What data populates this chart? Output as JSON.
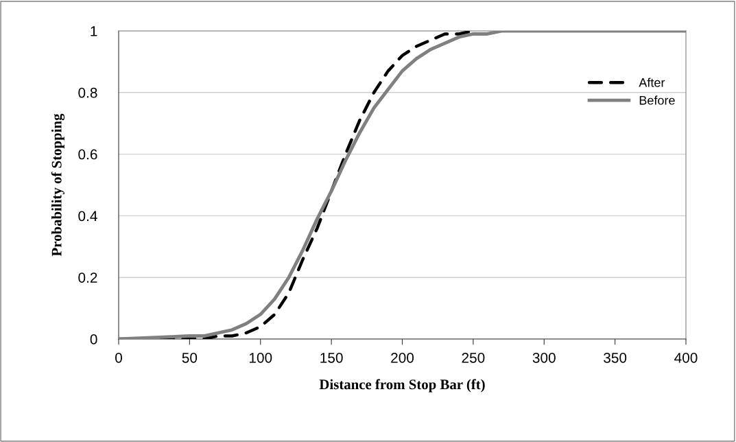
{
  "chart_data": {
    "type": "line",
    "xlabel": "Distance from Stop Bar (ft)",
    "ylabel": "Probability of Stopping",
    "xlim": [
      0,
      400
    ],
    "xticks": [
      0,
      50,
      100,
      150,
      200,
      250,
      300,
      350,
      400
    ],
    "ylim": [
      0,
      1
    ],
    "yticks": [
      0,
      0.2,
      0.4,
      0.6,
      0.8,
      1
    ],
    "grid": "y",
    "legend": "right",
    "marker": "none",
    "series": [
      {
        "name": "After",
        "color": "#000000",
        "line_style": "dashed",
        "x": [
          0,
          50,
          60,
          70,
          80,
          90,
          100,
          110,
          120,
          130,
          140,
          150,
          160,
          170,
          180,
          190,
          200,
          210,
          220,
          230,
          240,
          250
        ],
        "values": [
          0,
          0,
          0,
          0.01,
          0.01,
          0.02,
          0.04,
          0.08,
          0.15,
          0.26,
          0.36,
          0.48,
          0.6,
          0.71,
          0.8,
          0.87,
          0.92,
          0.95,
          0.97,
          0.99,
          0.99,
          1
        ]
      },
      {
        "name": "Before",
        "color": "#808080",
        "line_style": "solid",
        "x": [
          0,
          50,
          60,
          70,
          80,
          90,
          100,
          110,
          120,
          130,
          140,
          150,
          160,
          170,
          180,
          190,
          200,
          210,
          220,
          230,
          240,
          250,
          260,
          270,
          300,
          400
        ],
        "values": [
          0,
          0.01,
          0.01,
          0.02,
          0.03,
          0.05,
          0.08,
          0.13,
          0.2,
          0.29,
          0.39,
          0.48,
          0.58,
          0.67,
          0.75,
          0.81,
          0.87,
          0.91,
          0.94,
          0.96,
          0.98,
          0.99,
          0.99,
          1,
          1,
          1
        ]
      }
    ]
  }
}
